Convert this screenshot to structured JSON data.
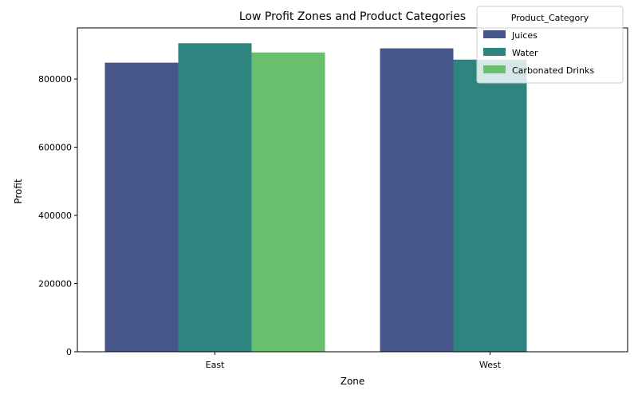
{
  "chart_data": {
    "type": "bar",
    "title": "Low Profit Zones and Product Categories",
    "xlabel": "Zone",
    "ylabel": "Profit",
    "categories": [
      "East",
      "West"
    ],
    "ylim": [
      0,
      950000
    ],
    "yticks": [
      0,
      200000,
      400000,
      600000,
      800000
    ],
    "grid": false,
    "legend_title": "Product_Category",
    "legend_position": "top-right",
    "series": [
      {
        "name": "Juices",
        "color": "#46568a",
        "values": [
          848000,
          890000
        ]
      },
      {
        "name": "Water",
        "color": "#2e8580",
        "values": [
          905000,
          857000
        ]
      },
      {
        "name": "Carbonated Drinks",
        "color": "#6abf6f",
        "values": [
          878000,
          null
        ]
      }
    ]
  }
}
